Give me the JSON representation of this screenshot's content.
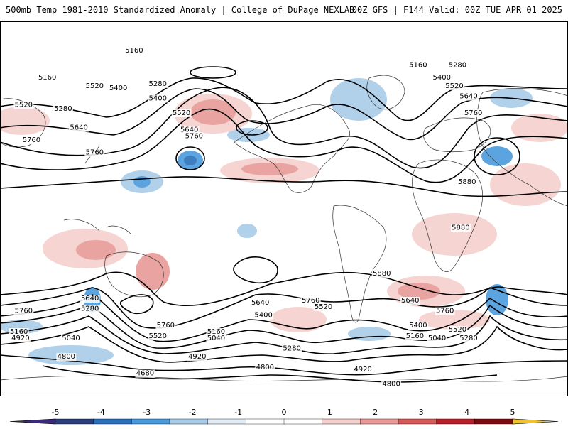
{
  "header": {
    "title_left": "500mb Temp 1981-2010 Standardized Anomaly | College of DuPage NEXLAB",
    "title_right": "00Z GFS | F144 Valid: 00Z TUE APR 01 2025"
  },
  "map": {
    "projection": "global cylindrical",
    "field": "500mb height contours (dam) with temperature standardized anomaly shading",
    "contour_labels": [
      {
        "text": "5160",
        "lon_lat": [
          -95,
          75
        ]
      },
      {
        "text": "5160",
        "lon_lat": [
          -150,
          62
        ]
      },
      {
        "text": "5520",
        "lon_lat": [
          -120,
          58
        ]
      },
      {
        "text": "5400",
        "lon_lat": [
          -105,
          57
        ]
      },
      {
        "text": "5280",
        "lon_lat": [
          -80,
          59
        ]
      },
      {
        "text": "5400",
        "lon_lat": [
          -80,
          52
        ]
      },
      {
        "text": "5520",
        "lon_lat": [
          -65,
          45
        ]
      },
      {
        "text": "5640",
        "lon_lat": [
          -60,
          37
        ]
      },
      {
        "text": "5760",
        "lon_lat": [
          -57,
          34
        ]
      },
      {
        "text": "5160",
        "lon_lat": [
          85,
          68
        ]
      },
      {
        "text": "5280",
        "lon_lat": [
          110,
          68
        ]
      },
      {
        "text": "5400",
        "lon_lat": [
          100,
          62
        ]
      },
      {
        "text": "5520",
        "lon_lat": [
          108,
          58
        ]
      },
      {
        "text": "5640",
        "lon_lat": [
          117,
          53
        ]
      },
      {
        "text": "5760",
        "lon_lat": [
          120,
          45
        ]
      },
      {
        "text": "5520",
        "lon_lat": [
          -165,
          49
        ]
      },
      {
        "text": "5280",
        "lon_lat": [
          -140,
          47
        ]
      },
      {
        "text": "5640",
        "lon_lat": [
          -130,
          38
        ]
      },
      {
        "text": "5760",
        "lon_lat": [
          -160,
          32
        ]
      },
      {
        "text": "5760",
        "lon_lat": [
          -120,
          26
        ]
      },
      {
        "text": "5880",
        "lon_lat": [
          116,
          12
        ]
      },
      {
        "text": "5880",
        "lon_lat": [
          112,
          -10
        ]
      },
      {
        "text": "5880",
        "lon_lat": [
          62,
          -32
        ]
      },
      {
        "text": "5760",
        "lon_lat": [
          -165,
          -50
        ]
      },
      {
        "text": "5640",
        "lon_lat": [
          -123,
          -44
        ]
      },
      {
        "text": "5280",
        "lon_lat": [
          -123,
          -49
        ]
      },
      {
        "text": "5760",
        "lon_lat": [
          -75,
          -57
        ]
      },
      {
        "text": "5640",
        "lon_lat": [
          -15,
          -46
        ]
      },
      {
        "text": "5400",
        "lon_lat": [
          -13,
          -52
        ]
      },
      {
        "text": "5760",
        "lon_lat": [
          17,
          -45
        ]
      },
      {
        "text": "5520",
        "lon_lat": [
          25,
          -48
        ]
      },
      {
        "text": "5640",
        "lon_lat": [
          80,
          -45
        ]
      },
      {
        "text": "5760",
        "lon_lat": [
          102,
          -50
        ]
      },
      {
        "text": "5400",
        "lon_lat": [
          85,
          -57
        ]
      },
      {
        "text": "5520",
        "lon_lat": [
          110,
          -59
        ]
      },
      {
        "text": "5280",
        "lon_lat": [
          117,
          -63
        ]
      },
      {
        "text": "5040",
        "lon_lat": [
          97,
          -63
        ]
      },
      {
        "text": "5160",
        "lon_lat": [
          83,
          -62
        ]
      },
      {
        "text": "5160",
        "lon_lat": [
          -168,
          -60
        ]
      },
      {
        "text": "4920",
        "lon_lat": [
          -167,
          -63
        ]
      },
      {
        "text": "5040",
        "lon_lat": [
          -135,
          -63
        ]
      },
      {
        "text": "5520",
        "lon_lat": [
          -80,
          -62
        ]
      },
      {
        "text": "5160",
        "lon_lat": [
          -43,
          -60
        ]
      },
      {
        "text": "5040",
        "lon_lat": [
          -43,
          -63
        ]
      },
      {
        "text": "5280",
        "lon_lat": [
          5,
          -68
        ]
      },
      {
        "text": "4800",
        "lon_lat": [
          -138,
          -72
        ]
      },
      {
        "text": "4920",
        "lon_lat": [
          -55,
          -72
        ]
      },
      {
        "text": "4800",
        "lon_lat": [
          -12,
          -77
        ]
      },
      {
        "text": "4920",
        "lon_lat": [
          50,
          -78
        ]
      },
      {
        "text": "4680",
        "lon_lat": [
          -88,
          -80
        ]
      },
      {
        "text": "4800",
        "lon_lat": [
          68,
          -85
        ]
      }
    ]
  },
  "colorbar": {
    "ticks": [
      "-5",
      "-4",
      "-3",
      "-2",
      "-1",
      "0",
      "1",
      "2",
      "3",
      "4",
      "5"
    ],
    "colors": [
      "#3b2a7a",
      "#2c3f78",
      "#2a6fb8",
      "#4a9bdc",
      "#a9cbe8",
      "#e2ecf5",
      "#ffffff",
      "#ffffff",
      "#f4d0cd",
      "#e79a97",
      "#d55a5a",
      "#b5202a",
      "#7a0b12",
      "#f2c12e"
    ]
  }
}
